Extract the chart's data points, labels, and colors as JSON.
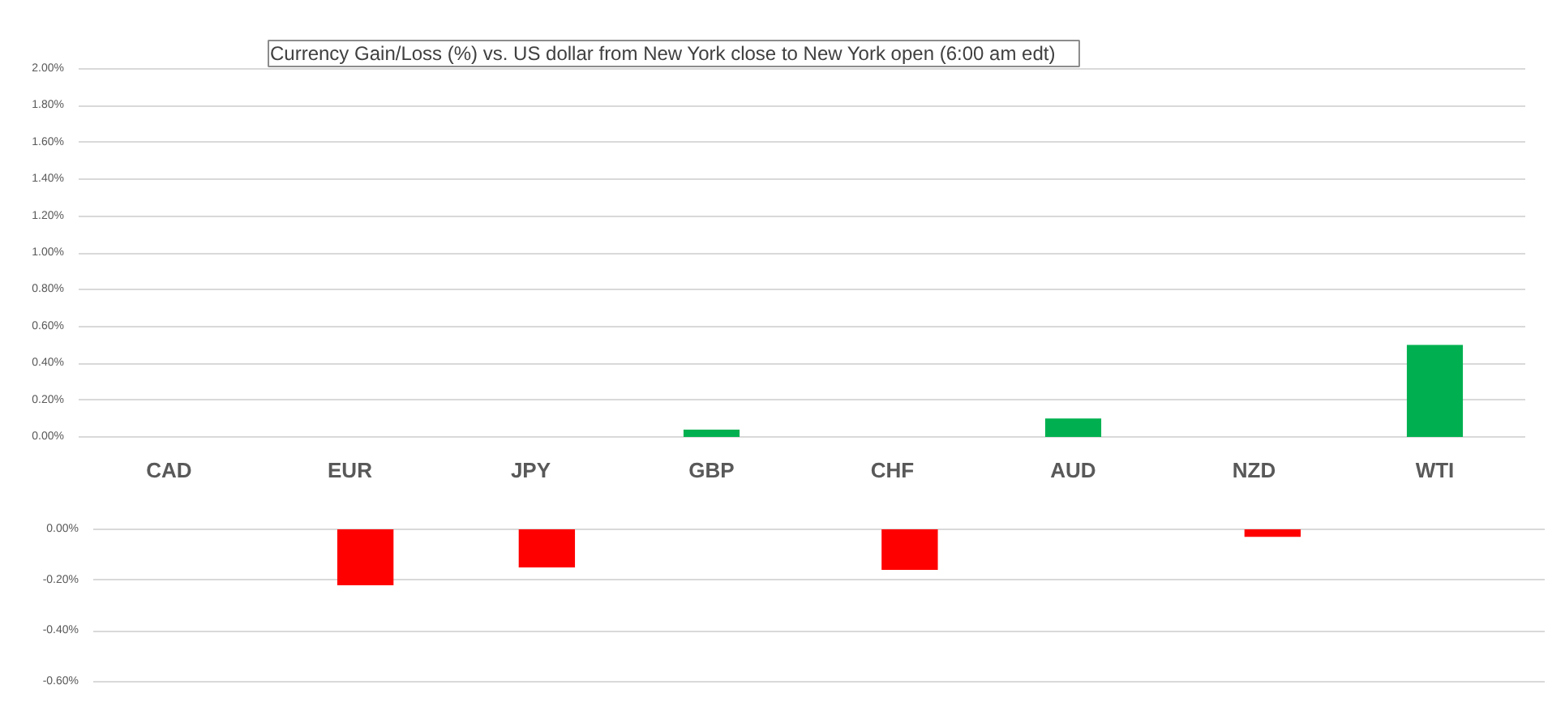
{
  "chart_data": [
    {
      "type": "bar",
      "title": "Currency  Gain/Loss (%) vs. US dollar  from New York close  to  New York open (6:00 am edt)",
      "categories": [
        "CAD",
        "EUR",
        "JPY",
        "GBP",
        "CHF",
        "AUD",
        "NZD",
        "WTI"
      ],
      "values": [
        null,
        null,
        null,
        0.04,
        null,
        0.1,
        null,
        0.5
      ],
      "color": "#00b050",
      "ylim": [
        0,
        2.0
      ],
      "yticks": [
        {
          "value": 0,
          "label": "0.00%"
        },
        {
          "value": 0.2,
          "label": "0.20%"
        },
        {
          "value": 0.4,
          "label": "0.40%"
        },
        {
          "value": 0.6,
          "label": "0.60%"
        },
        {
          "value": 0.8,
          "label": "0.80%"
        },
        {
          "value": 1.0,
          "label": "1.00%"
        },
        {
          "value": 1.2,
          "label": "1.20%"
        },
        {
          "value": 1.4,
          "label": "1.40%"
        },
        {
          "value": 1.6,
          "label": "1.60%"
        },
        {
          "value": 1.8,
          "label": "1.80%"
        },
        {
          "value": 2.0,
          "label": "2.00%"
        }
      ],
      "grid": "y"
    },
    {
      "type": "bar",
      "categories": [
        null,
        null,
        null,
        null,
        null,
        null,
        null,
        null
      ],
      "values": [
        null,
        -0.22,
        -0.15,
        null,
        -0.16,
        null,
        -0.03,
        null
      ],
      "color": "#ff0000",
      "ylim": [
        -0.6,
        0
      ],
      "yticks": [
        {
          "value": -0.6,
          "label": "-0.60%"
        },
        {
          "value": -0.4,
          "label": "-0.40%"
        },
        {
          "value": -0.2,
          "label": "-0.20%"
        },
        {
          "value": 0,
          "label": "0.00%"
        }
      ],
      "grid": "y",
      "tick_labels": "y"
    }
  ]
}
